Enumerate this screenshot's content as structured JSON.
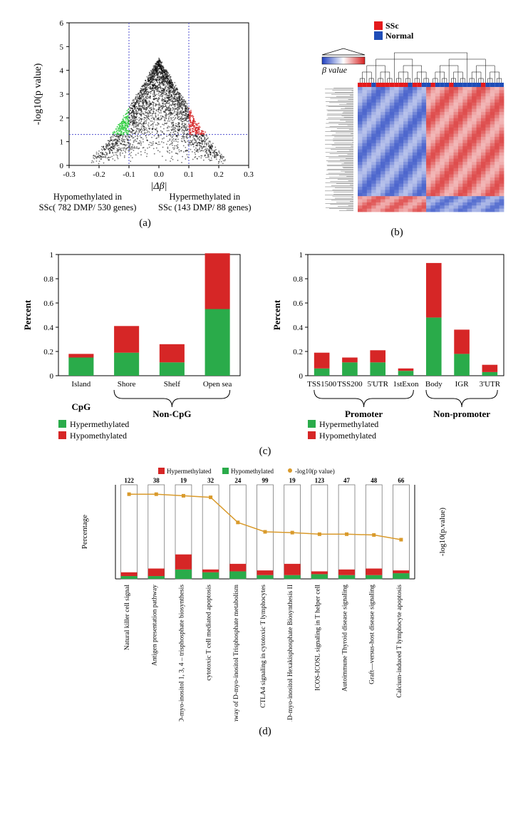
{
  "panelA": {
    "type": "volcano",
    "xlabel": "|Δβ|",
    "ylabel": "-log10(p value)",
    "xlim": [
      -0.3,
      0.3
    ],
    "xticks": [
      -0.3,
      -0.2,
      -0.1,
      0.0,
      0.1,
      0.2,
      0.3
    ],
    "ylim": [
      0,
      6
    ],
    "yticks": [
      0,
      1,
      2,
      3,
      4,
      5,
      6
    ],
    "threshold_x_neg": -0.1,
    "threshold_x_pos": 0.1,
    "threshold_y": 1.3,
    "colors": {
      "ns": "#000000",
      "left": "#2ecc40",
      "right": "#d62728",
      "thresh": "#5050d0"
    },
    "caption_left": "Hypomethylated in",
    "caption_left_2": "SSc( 782 DMP/ 530 genes)",
    "caption_right": "Hypermethylated in",
    "caption_right_2": "SSc (143 DMP/ 88 genes)",
    "label": "(a)"
  },
  "panelB": {
    "type": "heatmap",
    "legend_items": [
      "SSc",
      "Normal"
    ],
    "legend_colors": [
      "#e41a1c",
      "#1f4db8"
    ],
    "scale_label": "β value",
    "scale_low": "#2040c0",
    "scale_mid": "#ffffff",
    "scale_high": "#d62020",
    "group_bar": [
      0,
      0,
      0,
      1,
      0,
      0,
      0,
      0,
      0,
      0,
      0,
      1,
      0,
      0,
      1,
      1,
      0,
      1,
      1,
      1,
      0,
      1,
      1,
      1,
      1,
      1,
      1,
      0,
      1,
      1,
      1,
      1
    ],
    "label": "(b)"
  },
  "panelC": {
    "type": "stacked_bar_pair",
    "ylabel": "Percent",
    "left": {
      "categories": [
        "Island",
        "Shore",
        "Shelf",
        "Open sea"
      ],
      "hyper": [
        0.15,
        0.19,
        0.11,
        0.55
      ],
      "hypo": [
        0.03,
        0.22,
        0.15,
        0.46
      ],
      "ylim": [
        0,
        1
      ],
      "yticks": [
        0.0,
        0.2,
        0.4,
        0.6,
        0.8,
        1.0
      ],
      "bracket_left_label": "CpG",
      "bracket_right_label": "Non-CpG"
    },
    "right": {
      "categories": [
        "TSS1500",
        "TSS200",
        "5'UTR",
        "1stExon",
        "Body",
        "IGR",
        "3'UTR"
      ],
      "hyper": [
        0.06,
        0.11,
        0.11,
        0.04,
        0.48,
        0.18,
        0.03
      ],
      "hypo": [
        0.13,
        0.04,
        0.1,
        0.02,
        0.45,
        0.2,
        0.06
      ],
      "ylim": [
        0,
        1
      ],
      "yticks": [
        0,
        0.2,
        0.4,
        0.6,
        0.8,
        1
      ],
      "bracket_left_label": "Promoter",
      "bracket_right_label": "Non-promoter"
    },
    "colors": {
      "hyper": "#2aab4a",
      "hypo": "#d62626"
    },
    "legend_hyper": "Hypermethylated",
    "legend_hypo": "Hypomethylated",
    "label": "(c)"
  },
  "panelD": {
    "type": "bar_with_line",
    "legend_hyper": "Hypermethylated",
    "legend_hypo": "Hypomethylated",
    "legend_line": "-log10(p value)",
    "y_left": "Percentage",
    "y_right": "-log10(p.value)",
    "categories": [
      "Natural killer cell signal",
      "Antigen presentation pathway",
      "D-myo-inositol 1, 3, 4 – trisphosphate biosynthesis",
      "cytotoxic T cell mediated apoptosis",
      "Super-pathway of D-myo-inositol Trisphosphate metabolism",
      "CTLA4 signaling in cytotoxic T lymphocytes",
      "1D-myo-inositol Hexakisphosphate Biosynthesis II",
      "ICOS-ICOSL signaling in T helper cell",
      "Autoimmune Thyroid disease signaling",
      "Graft—versus-host disease signaling",
      "Calcium-induced T lymphocyte apoptosis"
    ],
    "counts": [
      122,
      38,
      19,
      32,
      24,
      99,
      19,
      123,
      47,
      48,
      66
    ],
    "hyper": [
      0.04,
      0.08,
      0.16,
      0.03,
      0.08,
      0.05,
      0.12,
      0.03,
      0.06,
      0.07,
      0.03
    ],
    "hypo": [
      0.03,
      0.03,
      0.1,
      0.07,
      0.08,
      0.04,
      0.04,
      0.05,
      0.04,
      0.04,
      0.06
    ],
    "line": [
      5.4,
      5.4,
      5.3,
      5.2,
      3.6,
      3.0,
      2.95,
      2.85,
      2.85,
      2.8,
      2.5
    ],
    "bar_ylim": [
      0,
      1
    ],
    "colors": {
      "hyper": "#d62626",
      "hypo": "#2aab4a",
      "line": "#d99a2b",
      "box": "#666"
    },
    "label": "(d)"
  }
}
